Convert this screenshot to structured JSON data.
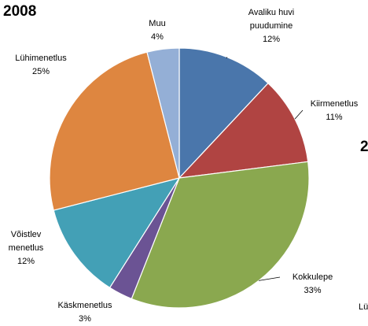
{
  "chart_data": {
    "type": "pie",
    "title": "2008",
    "categories": [
      "Avaliku huvi puudumine",
      "Kiirmenetlus",
      "Kokkulepe",
      "Käskmenetlus",
      "Võistlev menetlus",
      "Lühimenetlus",
      "Muu"
    ],
    "values": [
      12,
      11,
      33,
      3,
      12,
      25,
      4
    ],
    "value_labels": [
      "12%",
      "11%",
      "33%",
      "3%",
      "12%",
      "25%",
      "4%"
    ],
    "colors": [
      "#4a76ab",
      "#b04442",
      "#8aa84f",
      "#6b5394",
      "#43a0b6",
      "#de8640",
      "#94afd6"
    ],
    "annotations": [
      "2",
      "Lü"
    ]
  }
}
